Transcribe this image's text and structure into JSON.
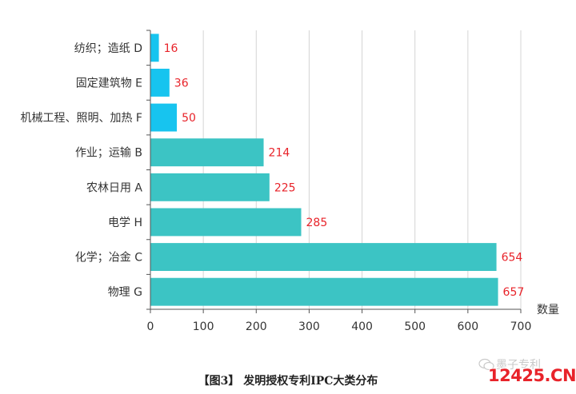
{
  "chart_data": {
    "type": "bar",
    "orientation": "horizontal",
    "categories": [
      "纺织；造纸 D",
      "固定建筑物 E",
      "机械工程、照明、加热 F",
      "作业；运输 B",
      "农林日用 A",
      "电学 H",
      "化学；冶金 C",
      "物理 G"
    ],
    "values": [
      16,
      36,
      50,
      214,
      225,
      285,
      654,
      657
    ],
    "bar_colors": [
      "#17c4ef",
      "#17c4ef",
      "#17c4ef",
      "#3cc4c4",
      "#3cc4c4",
      "#3cc4c4",
      "#3cc4c4",
      "#3cc4c4"
    ],
    "label_color": "#e8232a",
    "xlabel": "数量",
    "xlim": [
      0,
      700
    ],
    "xticks": [
      0,
      100,
      200,
      300,
      400,
      500,
      600,
      700
    ],
    "grid": true
  },
  "caption": "【图3】 发明授权专利IPC大类分布",
  "watermark": {
    "top_text": "墨子专利",
    "main_text": "12425.CN"
  }
}
